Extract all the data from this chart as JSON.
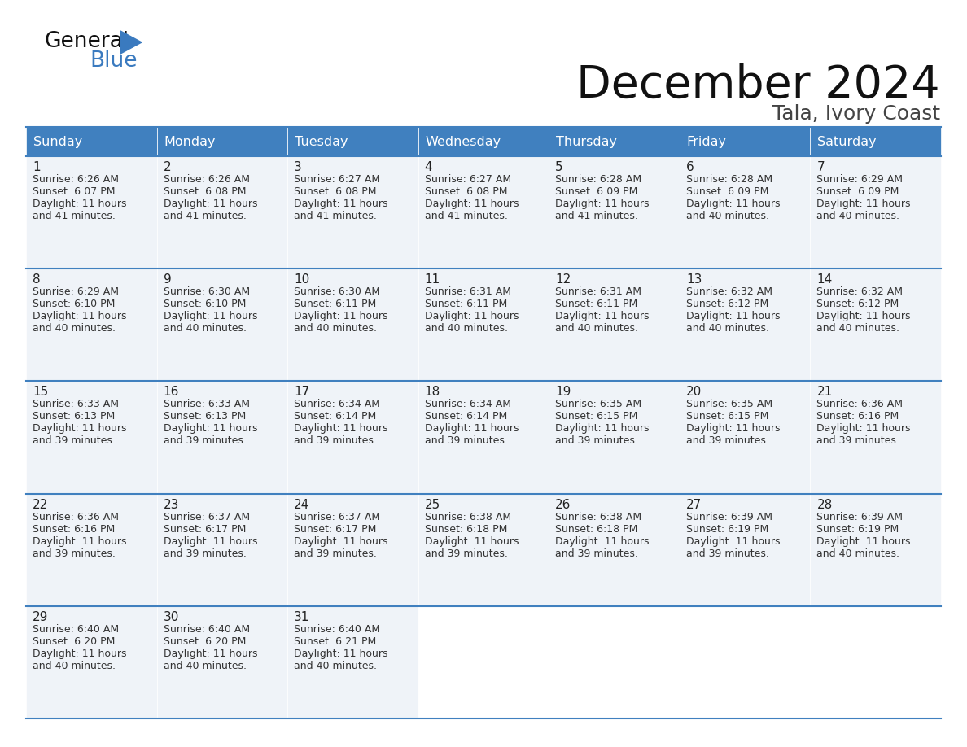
{
  "title": "December 2024",
  "subtitle": "Tala, Ivory Coast",
  "header_bg_color": "#4080bf",
  "header_text_color": "#ffffff",
  "cell_bg_filled": "#eff3f8",
  "cell_bg_empty": "#ffffff",
  "border_color": "#4080bf",
  "text_color": "#333333",
  "days_of_week": [
    "Sunday",
    "Monday",
    "Tuesday",
    "Wednesday",
    "Thursday",
    "Friday",
    "Saturday"
  ],
  "weeks": [
    [
      {
        "day": 1,
        "sunrise": "6:26 AM",
        "sunset": "6:07 PM",
        "daylight": "11 hours",
        "daylight2": "and 41 minutes."
      },
      {
        "day": 2,
        "sunrise": "6:26 AM",
        "sunset": "6:08 PM",
        "daylight": "11 hours",
        "daylight2": "and 41 minutes."
      },
      {
        "day": 3,
        "sunrise": "6:27 AM",
        "sunset": "6:08 PM",
        "daylight": "11 hours",
        "daylight2": "and 41 minutes."
      },
      {
        "day": 4,
        "sunrise": "6:27 AM",
        "sunset": "6:08 PM",
        "daylight": "11 hours",
        "daylight2": "and 41 minutes."
      },
      {
        "day": 5,
        "sunrise": "6:28 AM",
        "sunset": "6:09 PM",
        "daylight": "11 hours",
        "daylight2": "and 41 minutes."
      },
      {
        "day": 6,
        "sunrise": "6:28 AM",
        "sunset": "6:09 PM",
        "daylight": "11 hours",
        "daylight2": "and 40 minutes."
      },
      {
        "day": 7,
        "sunrise": "6:29 AM",
        "sunset": "6:09 PM",
        "daylight": "11 hours",
        "daylight2": "and 40 minutes."
      }
    ],
    [
      {
        "day": 8,
        "sunrise": "6:29 AM",
        "sunset": "6:10 PM",
        "daylight": "11 hours",
        "daylight2": "and 40 minutes."
      },
      {
        "day": 9,
        "sunrise": "6:30 AM",
        "sunset": "6:10 PM",
        "daylight": "11 hours",
        "daylight2": "and 40 minutes."
      },
      {
        "day": 10,
        "sunrise": "6:30 AM",
        "sunset": "6:11 PM",
        "daylight": "11 hours",
        "daylight2": "and 40 minutes."
      },
      {
        "day": 11,
        "sunrise": "6:31 AM",
        "sunset": "6:11 PM",
        "daylight": "11 hours",
        "daylight2": "and 40 minutes."
      },
      {
        "day": 12,
        "sunrise": "6:31 AM",
        "sunset": "6:11 PM",
        "daylight": "11 hours",
        "daylight2": "and 40 minutes."
      },
      {
        "day": 13,
        "sunrise": "6:32 AM",
        "sunset": "6:12 PM",
        "daylight": "11 hours",
        "daylight2": "and 40 minutes."
      },
      {
        "day": 14,
        "sunrise": "6:32 AM",
        "sunset": "6:12 PM",
        "daylight": "11 hours",
        "daylight2": "and 40 minutes."
      }
    ],
    [
      {
        "day": 15,
        "sunrise": "6:33 AM",
        "sunset": "6:13 PM",
        "daylight": "11 hours",
        "daylight2": "and 39 minutes."
      },
      {
        "day": 16,
        "sunrise": "6:33 AM",
        "sunset": "6:13 PM",
        "daylight": "11 hours",
        "daylight2": "and 39 minutes."
      },
      {
        "day": 17,
        "sunrise": "6:34 AM",
        "sunset": "6:14 PM",
        "daylight": "11 hours",
        "daylight2": "and 39 minutes."
      },
      {
        "day": 18,
        "sunrise": "6:34 AM",
        "sunset": "6:14 PM",
        "daylight": "11 hours",
        "daylight2": "and 39 minutes."
      },
      {
        "day": 19,
        "sunrise": "6:35 AM",
        "sunset": "6:15 PM",
        "daylight": "11 hours",
        "daylight2": "and 39 minutes."
      },
      {
        "day": 20,
        "sunrise": "6:35 AM",
        "sunset": "6:15 PM",
        "daylight": "11 hours",
        "daylight2": "and 39 minutes."
      },
      {
        "day": 21,
        "sunrise": "6:36 AM",
        "sunset": "6:16 PM",
        "daylight": "11 hours",
        "daylight2": "and 39 minutes."
      }
    ],
    [
      {
        "day": 22,
        "sunrise": "6:36 AM",
        "sunset": "6:16 PM",
        "daylight": "11 hours",
        "daylight2": "and 39 minutes."
      },
      {
        "day": 23,
        "sunrise": "6:37 AM",
        "sunset": "6:17 PM",
        "daylight": "11 hours",
        "daylight2": "and 39 minutes."
      },
      {
        "day": 24,
        "sunrise": "6:37 AM",
        "sunset": "6:17 PM",
        "daylight": "11 hours",
        "daylight2": "and 39 minutes."
      },
      {
        "day": 25,
        "sunrise": "6:38 AM",
        "sunset": "6:18 PM",
        "daylight": "11 hours",
        "daylight2": "and 39 minutes."
      },
      {
        "day": 26,
        "sunrise": "6:38 AM",
        "sunset": "6:18 PM",
        "daylight": "11 hours",
        "daylight2": "and 39 minutes."
      },
      {
        "day": 27,
        "sunrise": "6:39 AM",
        "sunset": "6:19 PM",
        "daylight": "11 hours",
        "daylight2": "and 39 minutes."
      },
      {
        "day": 28,
        "sunrise": "6:39 AM",
        "sunset": "6:19 PM",
        "daylight": "11 hours",
        "daylight2": "and 40 minutes."
      }
    ],
    [
      {
        "day": 29,
        "sunrise": "6:40 AM",
        "sunset": "6:20 PM",
        "daylight": "11 hours",
        "daylight2": "and 40 minutes."
      },
      {
        "day": 30,
        "sunrise": "6:40 AM",
        "sunset": "6:20 PM",
        "daylight": "11 hours",
        "daylight2": "and 40 minutes."
      },
      {
        "day": 31,
        "sunrise": "6:40 AM",
        "sunset": "6:21 PM",
        "daylight": "11 hours",
        "daylight2": "and 40 minutes."
      },
      null,
      null,
      null,
      null
    ]
  ]
}
